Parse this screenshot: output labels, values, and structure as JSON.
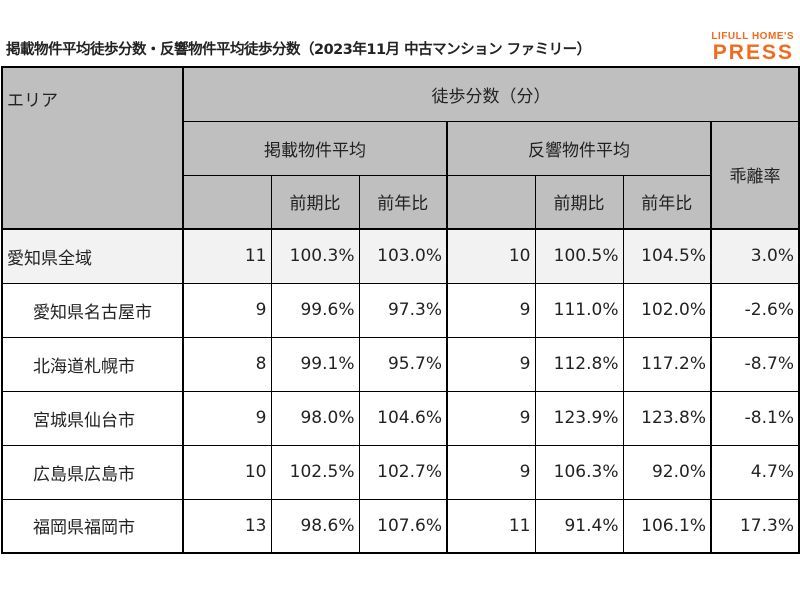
{
  "title": "掲載物件平均徒歩分数・反響物件平均徒歩分数（2023年11月 中古マンション ファミリー）",
  "logo": {
    "line1": "LIFULL HOME'S",
    "line2": "PRESS",
    "color": "#f26a1b"
  },
  "header": {
    "area": "エリア",
    "walk": "徒歩分数（分）",
    "listed": "掲載物件平均",
    "inquiry": "反響物件平均",
    "gap": "乖離率",
    "prev_period": "前期比",
    "prev_year": "前年比"
  },
  "rows": [
    {
      "area": "愛知県全域",
      "listed": "11",
      "listed_pp": "100.3%",
      "listed_py": "103.0%",
      "inquiry": "10",
      "inquiry_pp": "100.5%",
      "inquiry_py": "104.5%",
      "gap": "3.0%"
    },
    {
      "area": "愛知県名古屋市",
      "listed": "9",
      "listed_pp": "99.6%",
      "listed_py": "97.3%",
      "inquiry": "9",
      "inquiry_pp": "111.0%",
      "inquiry_py": "102.0%",
      "gap": "-2.6%"
    },
    {
      "area": "北海道札幌市",
      "listed": "8",
      "listed_pp": "99.1%",
      "listed_py": "95.7%",
      "inquiry": "9",
      "inquiry_pp": "112.8%",
      "inquiry_py": "117.2%",
      "gap": "-8.7%"
    },
    {
      "area": "宮城県仙台市",
      "listed": "9",
      "listed_pp": "98.0%",
      "listed_py": "104.6%",
      "inquiry": "9",
      "inquiry_pp": "123.9%",
      "inquiry_py": "123.8%",
      "gap": "-8.1%"
    },
    {
      "area": "広島県広島市",
      "listed": "10",
      "listed_pp": "102.5%",
      "listed_py": "102.7%",
      "inquiry": "9",
      "inquiry_pp": "106.3%",
      "inquiry_py": "92.0%",
      "gap": "4.7%"
    },
    {
      "area": "福岡県福岡市",
      "listed": "13",
      "listed_pp": "98.6%",
      "listed_py": "107.6%",
      "inquiry": "11",
      "inquiry_pp": "91.4%",
      "inquiry_py": "106.1%",
      "gap": "17.3%"
    }
  ]
}
